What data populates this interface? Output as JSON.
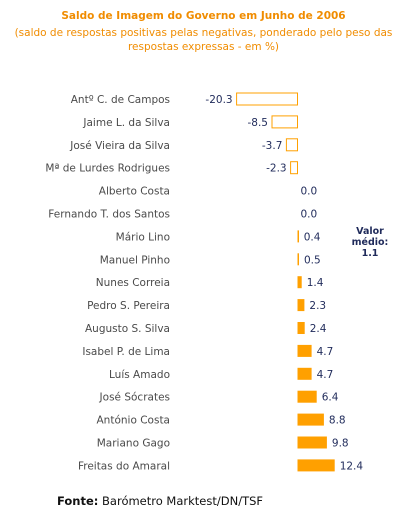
{
  "chart_data": {
    "type": "bar",
    "orientation": "horizontal",
    "title": "Saldo de Imagem do Governo em Junho de 2006",
    "subtitle": "(saldo de respostas positivas pelas negativas,  ponderado pelo peso das respostas expressas - em %)",
    "categories": [
      "Antº C. de Campos",
      "Jaime L. da Silva",
      "José Vieira da Silva",
      "Mª de Lurdes Rodrigues",
      "Alberto Costa",
      "Fernando T. dos Santos",
      "Mário Lino",
      "Manuel Pinho",
      "Nunes Correia",
      "Pedro S. Pereira",
      "Augusto S. Silva",
      "Isabel P. de Lima",
      "Luís Amado",
      "José Sócrates",
      "António Costa",
      "Mariano Gago",
      "Freitas do Amaral"
    ],
    "values": [
      -20.3,
      -8.5,
      -3.7,
      -2.3,
      0.0,
      0.0,
      0.4,
      0.5,
      1.4,
      2.3,
      2.4,
      4.7,
      4.7,
      6.4,
      8.8,
      9.8,
      12.4
    ],
    "value_labels": [
      "-20.3",
      "-8.5",
      "-3.7",
      "-2.3",
      "0.0",
      "0.0",
      "0.4",
      "0.5",
      "1.4",
      "2.3",
      "2.4",
      "4.7",
      "4.7",
      "6.4",
      "8.8",
      "9.8",
      "12.4"
    ],
    "xlim": [
      -20.3,
      12.4
    ],
    "grid": false,
    "colors": {
      "positive": "#ffa000",
      "negative": "#ffffff",
      "negative_border": "#ffa000",
      "title": "#f08c00"
    }
  },
  "annotation": {
    "line1": "Valor",
    "line2": "médio:",
    "line3": "1.1"
  },
  "source": {
    "label": "Fonte:",
    "text": "Barómetro Marktest/DN/TSF"
  }
}
